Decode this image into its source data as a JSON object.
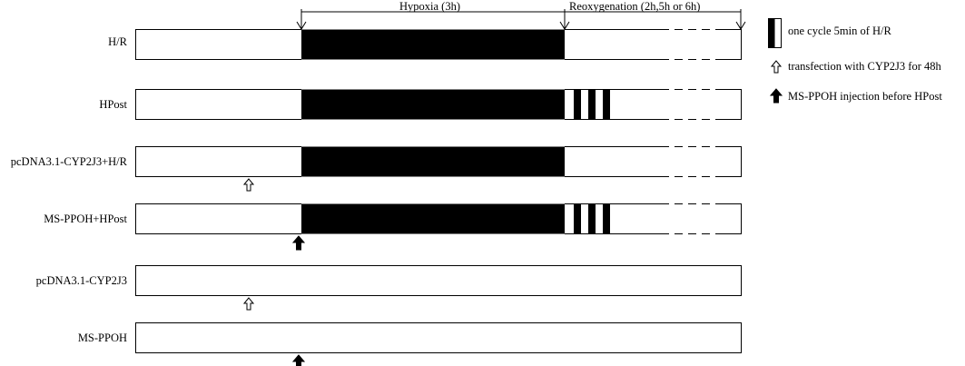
{
  "phases": {
    "hypoxia": "Hypoxia (3h)",
    "reoxygenation": "Reoxygenation (2h,5h or 6h)"
  },
  "rows": [
    {
      "label": "H/R",
      "hypoxia": true,
      "cycles": 0,
      "marker": null
    },
    {
      "label": "HPost",
      "hypoxia": true,
      "cycles": 3,
      "marker": null
    },
    {
      "label": "pcDNA3.1-CYP2J3+H/R",
      "hypoxia": true,
      "cycles": 0,
      "marker": "open-arrow"
    },
    {
      "label": "MS-PPOH+HPost",
      "hypoxia": true,
      "cycles": 3,
      "marker": "filled-arrow"
    },
    {
      "label": "pcDNA3.1-CYP2J3",
      "hypoxia": false,
      "cycles": 0,
      "marker": "open-arrow"
    },
    {
      "label": "MS-PPOH",
      "hypoxia": false,
      "cycles": 0,
      "marker": "filled-arrow"
    }
  ],
  "legend": [
    {
      "icon": "cycle-box-icon",
      "text": "one cycle 5min of H/R"
    },
    {
      "icon": "open-arrow-icon",
      "text": "transfection with CYP2J3 for 48h"
    },
    {
      "icon": "filled-arrow-icon",
      "text": "MS-PPOH injection before HPost"
    }
  ]
}
